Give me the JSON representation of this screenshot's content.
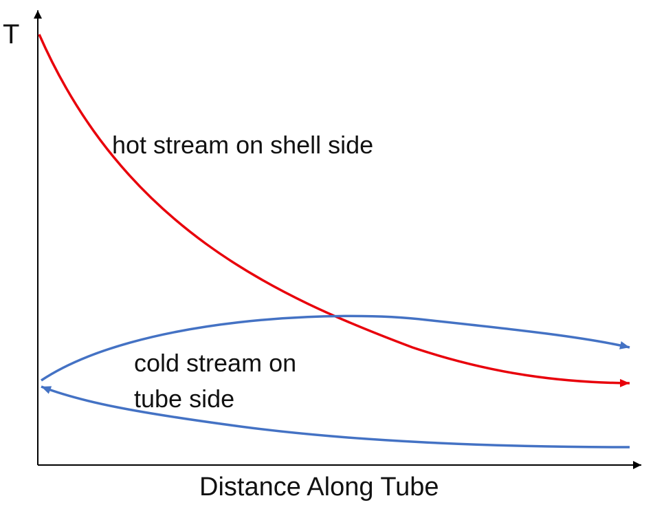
{
  "labels": {
    "y_axis": "T",
    "x_axis": "Distance Along Tube",
    "hot_stream": "hot stream on shell side",
    "cold_stream_line1": "cold stream on",
    "cold_stream_line2": "tube side"
  },
  "colors": {
    "axis": "#000000",
    "hot_stream": "#e8000b",
    "cold_stream": "#4472c4"
  }
}
